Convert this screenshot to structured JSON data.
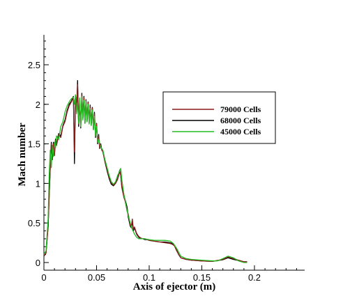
{
  "chart_data": {
    "type": "line",
    "title": "",
    "xlabel": "Axis of ejector (m)",
    "ylabel": "Mach number",
    "xlim": [
      0,
      0.24
    ],
    "ylim": [
      -0.1,
      2.85
    ],
    "xticks": [
      0,
      0.05,
      0.1,
      0.15,
      0.2
    ],
    "xtick_labels": [
      "0",
      "0.05",
      "0.1",
      "0.15",
      "0.2"
    ],
    "yticks": [
      0,
      0.5,
      1,
      1.5,
      2,
      2.5
    ],
    "ytick_labels": [
      "0",
      "0.5",
      "1",
      "1.5",
      "2",
      "2.5"
    ],
    "x_minor_step": 0.01,
    "y_minor_step": 0.1,
    "grid": false,
    "legend_position": "right",
    "series": [
      {
        "name": "79000 Cells",
        "color": "#8b1a1a",
        "x": [
          0,
          0.002,
          0.004,
          0.006,
          0.007,
          0.008,
          0.009,
          0.01,
          0.011,
          0.012,
          0.014,
          0.016,
          0.018,
          0.02,
          0.022,
          0.024,
          0.026,
          0.028,
          0.029,
          0.03,
          0.031,
          0.032,
          0.033,
          0.034,
          0.035,
          0.036,
          0.037,
          0.038,
          0.039,
          0.04,
          0.041,
          0.042,
          0.043,
          0.044,
          0.045,
          0.046,
          0.047,
          0.048,
          0.049,
          0.05,
          0.051,
          0.052,
          0.053,
          0.054,
          0.055,
          0.056,
          0.058,
          0.06,
          0.062,
          0.064,
          0.066,
          0.068,
          0.07,
          0.072,
          0.073,
          0.074,
          0.075,
          0.076,
          0.077,
          0.078,
          0.079,
          0.08,
          0.081,
          0.082,
          0.083,
          0.084,
          0.085,
          0.086,
          0.088,
          0.09,
          0.092,
          0.094,
          0.096,
          0.098,
          0.1,
          0.105,
          0.11,
          0.115,
          0.12,
          0.122,
          0.124,
          0.126,
          0.128,
          0.13,
          0.135,
          0.14,
          0.15,
          0.16,
          0.17,
          0.175,
          0.18,
          0.185,
          0.19,
          0.193
        ],
        "values": [
          0.08,
          0.12,
          0.45,
          1.2,
          1.5,
          1.3,
          1.5,
          1.35,
          1.55,
          1.48,
          1.62,
          1.58,
          1.72,
          1.78,
          1.9,
          1.98,
          2.03,
          2.08,
          1.4,
          2.1,
          1.95,
          2.25,
          1.75,
          2.02,
          1.72,
          2.12,
          1.85,
          2.08,
          1.78,
          2.06,
          1.8,
          2.02,
          1.78,
          1.98,
          1.75,
          1.95,
          1.7,
          1.88,
          1.6,
          1.75,
          1.52,
          1.6,
          1.45,
          1.48,
          1.42,
          1.4,
          1.28,
          1.18,
          1.08,
          1.01,
          0.98,
          1.0,
          1.05,
          1.15,
          1.1,
          0.95,
          0.88,
          0.82,
          0.78,
          0.72,
          0.65,
          0.62,
          0.55,
          0.48,
          0.45,
          0.55,
          0.42,
          0.45,
          0.37,
          0.33,
          0.31,
          0.3,
          0.3,
          0.29,
          0.28,
          0.27,
          0.26,
          0.25,
          0.24,
          0.23,
          0.21,
          0.15,
          0.1,
          0.06,
          0.04,
          0.03,
          0.02,
          0.015,
          0.04,
          0.07,
          0.05,
          0.03,
          0.01,
          0.01
        ]
      },
      {
        "name": "68000 Cells",
        "color": "#000000",
        "x": [
          0,
          0.002,
          0.004,
          0.006,
          0.007,
          0.008,
          0.009,
          0.01,
          0.011,
          0.012,
          0.014,
          0.016,
          0.018,
          0.02,
          0.022,
          0.024,
          0.026,
          0.028,
          0.029,
          0.03,
          0.031,
          0.032,
          0.033,
          0.034,
          0.035,
          0.036,
          0.037,
          0.038,
          0.039,
          0.04,
          0.041,
          0.042,
          0.043,
          0.044,
          0.045,
          0.046,
          0.047,
          0.048,
          0.049,
          0.05,
          0.051,
          0.052,
          0.053,
          0.054,
          0.055,
          0.056,
          0.058,
          0.06,
          0.062,
          0.064,
          0.066,
          0.068,
          0.07,
          0.072,
          0.073,
          0.074,
          0.075,
          0.076,
          0.077,
          0.078,
          0.079,
          0.08,
          0.081,
          0.082,
          0.083,
          0.084,
          0.085,
          0.086,
          0.088,
          0.09,
          0.092,
          0.094,
          0.096,
          0.098,
          0.1,
          0.105,
          0.11,
          0.115,
          0.12,
          0.122,
          0.124,
          0.126,
          0.128,
          0.13,
          0.135,
          0.14,
          0.15,
          0.16,
          0.17,
          0.175,
          0.18,
          0.185,
          0.19,
          0.193
        ],
        "values": [
          0.08,
          0.12,
          0.45,
          1.22,
          1.52,
          1.3,
          1.52,
          1.36,
          1.56,
          1.5,
          1.63,
          1.6,
          1.73,
          1.8,
          1.92,
          2.0,
          2.04,
          2.1,
          1.25,
          2.12,
          1.92,
          2.3,
          1.72,
          2.04,
          1.7,
          2.14,
          1.82,
          2.1,
          1.76,
          2.06,
          1.78,
          2.03,
          1.76,
          1.99,
          1.74,
          1.96,
          1.68,
          1.9,
          1.58,
          1.76,
          1.5,
          1.62,
          1.44,
          1.5,
          1.42,
          1.4,
          1.27,
          1.16,
          1.06,
          0.99,
          0.97,
          1.0,
          1.06,
          1.17,
          1.1,
          0.96,
          0.9,
          0.84,
          0.8,
          0.75,
          0.7,
          0.58,
          0.52,
          0.46,
          0.44,
          0.52,
          0.4,
          0.44,
          0.36,
          0.32,
          0.3,
          0.3,
          0.29,
          0.29,
          0.28,
          0.27,
          0.26,
          0.26,
          0.25,
          0.24,
          0.22,
          0.16,
          0.1,
          0.06,
          0.04,
          0.03,
          0.02,
          0.015,
          0.035,
          0.06,
          0.04,
          0.025,
          0.01,
          0.01
        ]
      },
      {
        "name": "45000 Cells",
        "color": "#22bb22",
        "x": [
          0,
          0.002,
          0.004,
          0.005,
          0.006,
          0.007,
          0.008,
          0.009,
          0.01,
          0.011,
          0.012,
          0.014,
          0.016,
          0.018,
          0.02,
          0.022,
          0.024,
          0.026,
          0.028,
          0.029,
          0.03,
          0.031,
          0.032,
          0.033,
          0.034,
          0.035,
          0.036,
          0.037,
          0.038,
          0.039,
          0.04,
          0.041,
          0.042,
          0.043,
          0.044,
          0.045,
          0.046,
          0.047,
          0.048,
          0.049,
          0.05,
          0.051,
          0.052,
          0.054,
          0.056,
          0.058,
          0.06,
          0.062,
          0.064,
          0.066,
          0.068,
          0.07,
          0.072,
          0.073,
          0.074,
          0.075,
          0.076,
          0.077,
          0.078,
          0.08,
          0.082,
          0.084,
          0.086,
          0.088,
          0.09,
          0.092,
          0.095,
          0.1,
          0.105,
          0.11,
          0.115,
          0.12,
          0.123,
          0.126,
          0.13,
          0.135,
          0.14,
          0.15,
          0.16,
          0.165,
          0.17,
          0.175,
          0.18,
          0.185,
          0.19,
          0.193
        ],
        "values": [
          0.1,
          0.15,
          0.55,
          1.1,
          1.42,
          1.2,
          1.48,
          1.34,
          1.52,
          1.45,
          1.6,
          1.55,
          1.72,
          1.78,
          1.9,
          1.98,
          2.03,
          2.07,
          2.09,
          2.0,
          2.12,
          1.88,
          2.02,
          1.76,
          2.08,
          1.72,
          2.1,
          1.8,
          2.05,
          1.76,
          2.04,
          1.78,
          2.0,
          1.75,
          1.95,
          1.73,
          1.93,
          1.68,
          1.85,
          1.6,
          1.72,
          1.52,
          1.56,
          1.46,
          1.42,
          1.3,
          1.2,
          1.1,
          1.02,
          0.99,
          1.02,
          1.1,
          1.16,
          1.19,
          1.05,
          0.95,
          0.86,
          0.8,
          0.72,
          0.6,
          0.5,
          0.42,
          0.36,
          0.32,
          0.3,
          0.3,
          0.3,
          0.29,
          0.28,
          0.28,
          0.28,
          0.27,
          0.24,
          0.18,
          0.08,
          0.05,
          0.04,
          0.03,
          0.02,
          0.02,
          0.05,
          0.08,
          0.06,
          0.02,
          0.0,
          0.0
        ]
      }
    ]
  }
}
